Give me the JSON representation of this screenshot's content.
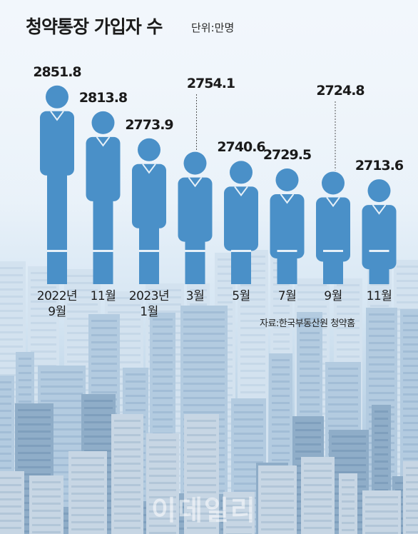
{
  "title": "청약통장 가입자 수",
  "unit": "단위:만명",
  "source": "자료:한국부동산원 청약홈",
  "watermark": "이데일리",
  "colors": {
    "figure": "#4a90c8",
    "stripe": "#e6f0f8",
    "sky": "#e8f1f9"
  },
  "chart_data": {
    "type": "bar",
    "categories": [
      {
        "line1": "2022년",
        "line2": "9월"
      },
      {
        "line1": "11월",
        "line2": ""
      },
      {
        "line1": "2023년",
        "line2": "1월"
      },
      {
        "line1": "3월",
        "line2": ""
      },
      {
        "line1": "5월",
        "line2": ""
      },
      {
        "line1": "7월",
        "line2": ""
      },
      {
        "line1": "9월",
        "line2": ""
      },
      {
        "line1": "11월",
        "line2": ""
      }
    ],
    "values": [
      2851.8,
      2813.8,
      2773.9,
      2754.1,
      2740.6,
      2729.5,
      2724.8,
      2713.6
    ],
    "value_labels": [
      "2851.8",
      "2813.8",
      "2773.9",
      "2754.1",
      "2740.6",
      "2729.5",
      "2724.8",
      "2713.6"
    ],
    "title": "청약통장 가입자 수",
    "unit": "단위:만명",
    "ylim": [
      2700,
      2860
    ]
  }
}
